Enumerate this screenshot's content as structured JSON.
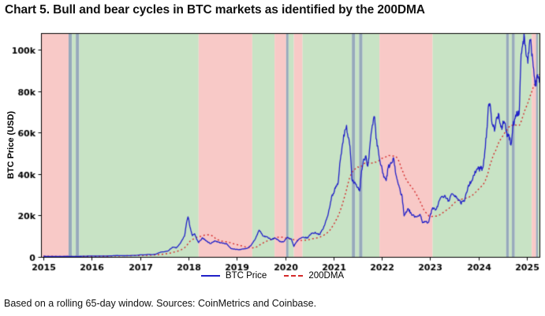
{
  "title": "Chart 5. Bull and bear cycles in BTC markets as identified by the 200DMA",
  "footnote": "Based on a rolling 65-day window. Sources: CoinMetrics and Coinbase.",
  "chart_data": {
    "type": "line",
    "title": "Bull and bear cycles in BTC markets as identified by the 200DMA",
    "xlabel": "",
    "ylabel": "BTC Price (USD)",
    "xlim": [
      2014.95,
      2025.26
    ],
    "ylim": [
      0,
      108000
    ],
    "grid": false,
    "legend_position": "bottom-center",
    "x_ticks": [
      2015,
      2016,
      2017,
      2018,
      2019,
      2020,
      2021,
      2022,
      2023,
      2024,
      2025
    ],
    "y_ticks": [
      {
        "v": 0,
        "label": "0"
      },
      {
        "v": 20000,
        "label": "20k"
      },
      {
        "v": 40000,
        "label": "40k"
      },
      {
        "v": 60000,
        "label": "60k"
      },
      {
        "v": 80000,
        "label": "80k"
      },
      {
        "v": 100000,
        "label": "100k"
      }
    ],
    "legend": [
      {
        "label": "BTC Price",
        "color": "#2020c8",
        "style": "solid"
      },
      {
        "label": "200DMA",
        "color": "#d42a2a",
        "style": "dashed"
      }
    ],
    "band_colors": {
      "bull": "#c8e3c5",
      "bear": "#f8c9c7",
      "neutral": "#97a9bb"
    },
    "bands": [
      {
        "from": 2014.95,
        "to": 2015.52,
        "type": "bear"
      },
      {
        "from": 2015.52,
        "to": 2015.59,
        "type": "neutral"
      },
      {
        "from": 2015.59,
        "to": 2015.67,
        "type": "bull"
      },
      {
        "from": 2015.67,
        "to": 2015.74,
        "type": "neutral"
      },
      {
        "from": 2015.74,
        "to": 2018.21,
        "type": "bull"
      },
      {
        "from": 2018.21,
        "to": 2019.32,
        "type": "bear"
      },
      {
        "from": 2019.32,
        "to": 2019.78,
        "type": "bull"
      },
      {
        "from": 2019.78,
        "to": 2020.02,
        "type": "bear"
      },
      {
        "from": 2020.02,
        "to": 2020.07,
        "type": "neutral"
      },
      {
        "from": 2020.07,
        "to": 2020.18,
        "type": "bull"
      },
      {
        "from": 2020.18,
        "to": 2020.36,
        "type": "bear"
      },
      {
        "from": 2020.36,
        "to": 2021.38,
        "type": "bull"
      },
      {
        "from": 2021.38,
        "to": 2021.45,
        "type": "neutral"
      },
      {
        "from": 2021.45,
        "to": 2021.53,
        "type": "bull"
      },
      {
        "from": 2021.53,
        "to": 2021.6,
        "type": "neutral"
      },
      {
        "from": 2021.6,
        "to": 2021.95,
        "type": "bull"
      },
      {
        "from": 2021.95,
        "to": 2023.05,
        "type": "bear"
      },
      {
        "from": 2023.05,
        "to": 2024.57,
        "type": "bull"
      },
      {
        "from": 2024.57,
        "to": 2024.63,
        "type": "neutral"
      },
      {
        "from": 2024.63,
        "to": 2024.69,
        "type": "bull"
      },
      {
        "from": 2024.69,
        "to": 2024.75,
        "type": "neutral"
      },
      {
        "from": 2024.75,
        "to": 2025.1,
        "type": "bull"
      },
      {
        "from": 2025.1,
        "to": 2025.19,
        "type": "bear"
      },
      {
        "from": 2025.19,
        "to": 2025.23,
        "type": "neutral"
      },
      {
        "from": 2025.23,
        "to": 2025.26,
        "type": "bull"
      }
    ],
    "series": [
      {
        "name": "BTC Price",
        "color": "#2020c8",
        "style": "solid",
        "x": [
          2015.0,
          2015.08,
          2015.17,
          2015.25,
          2015.33,
          2015.42,
          2015.5,
          2015.58,
          2015.67,
          2015.75,
          2015.83,
          2015.92,
          2016.0,
          2016.08,
          2016.17,
          2016.25,
          2016.33,
          2016.42,
          2016.5,
          2016.58,
          2016.67,
          2016.75,
          2016.83,
          2016.92,
          2017.0,
          2017.08,
          2017.17,
          2017.25,
          2017.33,
          2017.42,
          2017.5,
          2017.58,
          2017.67,
          2017.75,
          2017.83,
          2017.92,
          2017.96,
          2017.99,
          2018.04,
          2018.08,
          2018.13,
          2018.17,
          2018.21,
          2018.29,
          2018.38,
          2018.46,
          2018.54,
          2018.63,
          2018.71,
          2018.79,
          2018.88,
          2018.96,
          2019.04,
          2019.13,
          2019.21,
          2019.29,
          2019.38,
          2019.46,
          2019.5,
          2019.54,
          2019.63,
          2019.71,
          2019.79,
          2019.88,
          2019.96,
          2020.04,
          2020.13,
          2020.18,
          2020.21,
          2020.29,
          2020.38,
          2020.46,
          2020.54,
          2020.63,
          2020.71,
          2020.79,
          2020.88,
          2020.96,
          2021.04,
          2021.09,
          2021.13,
          2021.21,
          2021.27,
          2021.3,
          2021.34,
          2021.38,
          2021.42,
          2021.46,
          2021.5,
          2021.54,
          2021.58,
          2021.63,
          2021.67,
          2021.71,
          2021.79,
          2021.85,
          2021.88,
          2021.96,
          2022.04,
          2022.09,
          2022.13,
          2022.21,
          2022.25,
          2022.29,
          2022.33,
          2022.38,
          2022.42,
          2022.46,
          2022.54,
          2022.63,
          2022.71,
          2022.79,
          2022.84,
          2022.88,
          2022.96,
          2023.04,
          2023.13,
          2023.21,
          2023.29,
          2023.38,
          2023.46,
          2023.54,
          2023.63,
          2023.71,
          2023.79,
          2023.88,
          2023.96,
          2024.04,
          2024.09,
          2024.13,
          2024.17,
          2024.21,
          2024.25,
          2024.29,
          2024.33,
          2024.38,
          2024.42,
          2024.46,
          2024.54,
          2024.59,
          2024.63,
          2024.67,
          2024.71,
          2024.79,
          2024.84,
          2024.88,
          2024.92,
          2024.95,
          2024.98,
          2025.02,
          2025.05,
          2025.08,
          2025.1,
          2025.13,
          2025.16,
          2025.19,
          2025.22,
          2025.24,
          2025.26
        ],
        "y": [
          315,
          254,
          244,
          236,
          230,
          263,
          284,
          230,
          236,
          270,
          330,
          377,
          430,
          368,
          437,
          416,
          448,
          531,
          673,
          624,
          573,
          609,
          700,
          745,
          963,
          970,
          1179,
          1071,
          1347,
          2286,
          2480,
          2875,
          4703,
          4360,
          6468,
          10233,
          16500,
          19350,
          13800,
          10200,
          11100,
          8500,
          6900,
          9240,
          7494,
          6404,
          7780,
          7037,
          6625,
          6317,
          4017,
          3742,
          3457,
          3854,
          4105,
          5350,
          8574,
          12900,
          11800,
          10085,
          9630,
          8293,
          9199,
          7569,
          7193,
          9350,
          8599,
          5000,
          6438,
          8658,
          9461,
          9137,
          11351,
          11655,
          10784,
          13797,
          19698,
          28996,
          33114,
          35000,
          45137,
          58918,
          63500,
          57750,
          53500,
          37332,
          35500,
          35040,
          33500,
          31800,
          41626,
          47166,
          48800,
          43790,
          61318,
          67500,
          57005,
          46306,
          38483,
          36800,
          43193,
          45538,
          47000,
          39700,
          36000,
          31792,
          29000,
          19784,
          23336,
          20049,
          19431,
          20495,
          16500,
          17168,
          16547,
          23139,
          23147,
          28478,
          29268,
          27219,
          30477,
          29230,
          25931,
          26967,
          34667,
          37723,
          42265,
          42580,
          43000,
          51198,
          61198,
          73700,
          71333,
          63800,
          60636,
          67491,
          69000,
          62678,
          64619,
          58000,
          58969,
          54000,
          63329,
          70215,
          69000,
          98000,
          104000,
          106000,
          98000,
          93429,
          102405,
          105000,
          97000,
          92000,
          86000,
          82500,
          88000,
          87000,
          84000
        ]
      },
      {
        "name": "200DMA",
        "color": "#d42a2a",
        "style": "dashed",
        "derived": "trailing_200_day_mean_of_btc_price"
      }
    ]
  }
}
